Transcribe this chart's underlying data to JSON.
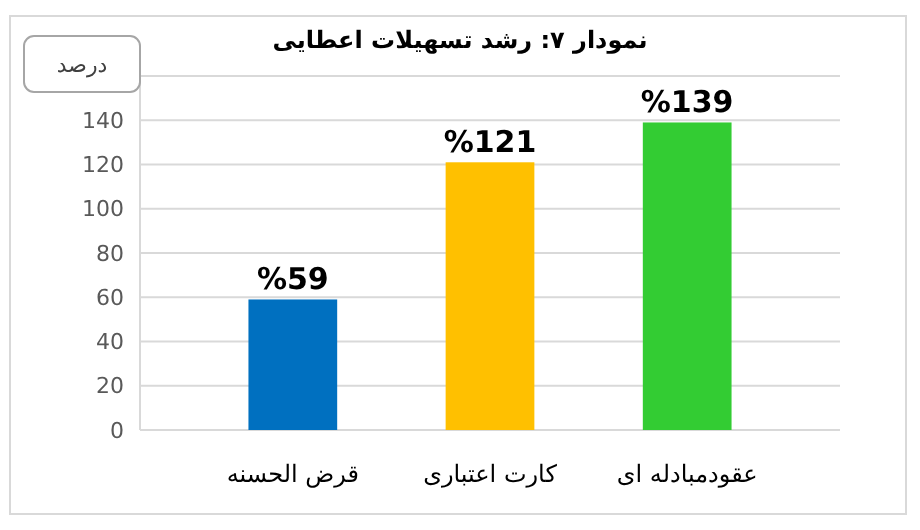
{
  "chart_data": {
    "type": "bar",
    "title": "نمودار ۷: رشد تسهیلات اعطایی",
    "ylabel": "درصد",
    "categories": [
      "قرض الحسنه",
      "کارت اعتباری",
      "عقودمبادله ای"
    ],
    "values": [
      59,
      121,
      139
    ],
    "colors": [
      "#0070c0",
      "#ffc000",
      "#33cc33"
    ],
    "value_labels": [
      "%59",
      "%121",
      "%139"
    ],
    "ylim": [
      0,
      160
    ],
    "yticks": [
      0,
      20,
      40,
      60,
      80,
      100,
      120,
      140
    ],
    "grid": "y"
  }
}
